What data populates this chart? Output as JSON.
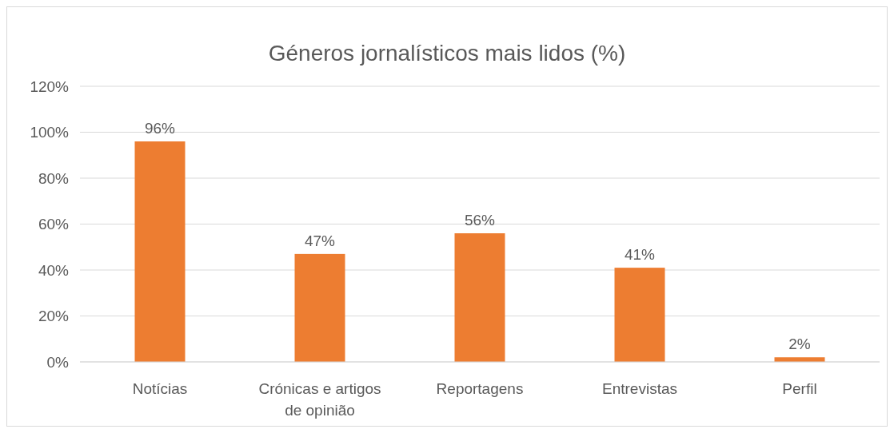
{
  "chart_data": {
    "type": "bar",
    "title": "Géneros jornalísticos mais lidos (%)",
    "categories": [
      "Notícias",
      "Crónicas e artigos de opinião",
      "Reportagens",
      "Entrevistas",
      "Perfil"
    ],
    "values": [
      96,
      47,
      56,
      41,
      2
    ],
    "value_labels": [
      "96%",
      "47%",
      "56%",
      "41%",
      "2%"
    ],
    "color": "#ed7d31",
    "ylim": [
      0,
      120
    ],
    "yticks": [
      {
        "value": 0,
        "label": "0%"
      },
      {
        "value": 20,
        "label": "20%"
      },
      {
        "value": 40,
        "label": "40%"
      },
      {
        "value": 60,
        "label": "60%"
      },
      {
        "value": 80,
        "label": "80%"
      },
      {
        "value": 100,
        "label": "100%"
      },
      {
        "value": 120,
        "label": "120%"
      }
    ],
    "grid": "y"
  }
}
